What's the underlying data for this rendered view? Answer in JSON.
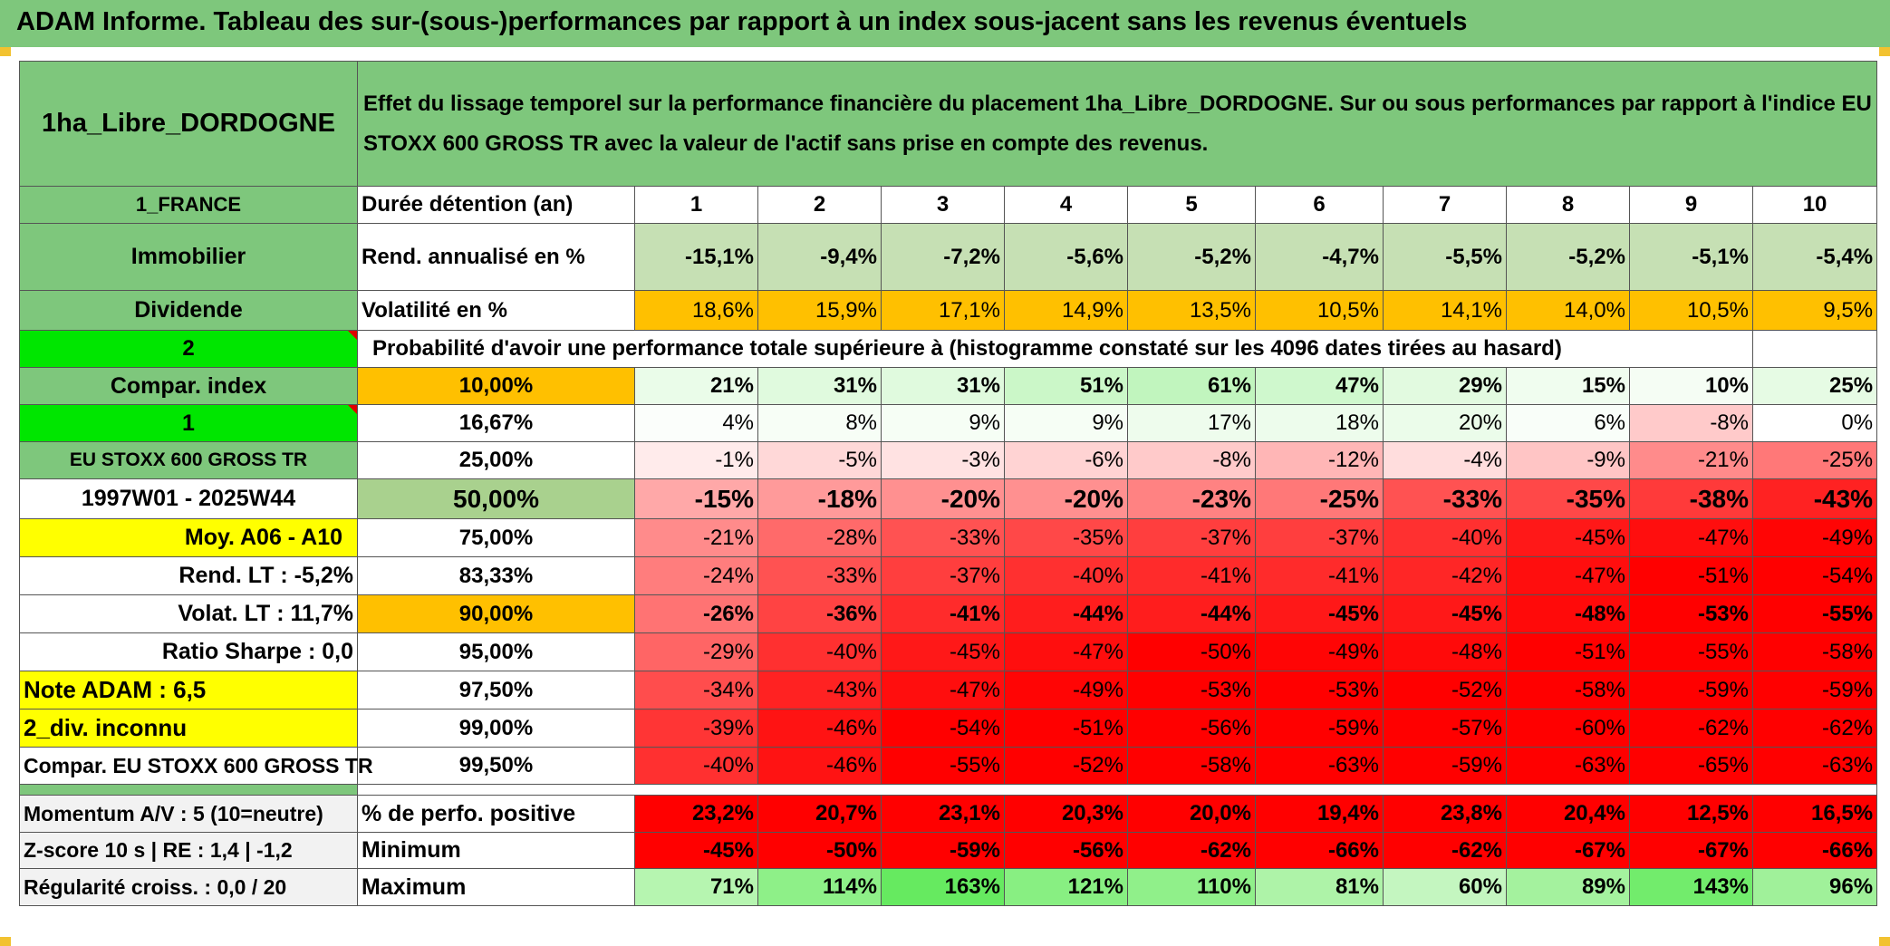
{
  "title": "ADAM Informe. Tableau des sur-(sous-)performances par rapport à un index sous-jacent sans les revenus éventuels",
  "fund_name": "1ha_Libre_DORDOGNE",
  "description": "Effet du lissage temporel sur la performance financière du placement 1ha_Libre_DORDOGNE. Sur ou sous performances par rapport à l'indice EU STOXX 600 GROSS TR avec la valeur de l'actif sans prise en compte des revenus.",
  "left_labels": {
    "country": "1_FRANCE",
    "category": "Immobilier",
    "type": "Dividende",
    "num2": "2",
    "compar_index": "Compar. index",
    "num1": "1",
    "index_name": "EU STOXX 600 GROSS TR",
    "period": "1997W01 - 2025W44",
    "moy": "Moy. A06 - A10",
    "rend_lt": "Rend. LT :    -5,2%",
    "volat_lt": "Volat. LT :   11,7%",
    "sharpe": "Ratio Sharpe :    0,0",
    "note": "Note ADAM : 6,5",
    "div": "2_div. inconnu",
    "compar": "Compar. EU STOXX 600 GROSS TR",
    "momentum": "Momentum A/V : 5 (10=neutre)",
    "zscore": "Z-score 10 s | RE : 1,4 | -1,2",
    "regularite": "Régularité croiss. : 0,0 / 20"
  },
  "row_labels": {
    "duree": "Durée détention (an)",
    "rend": "Rend. annualisé en %",
    "vol": "Volatilité en %",
    "proba": "Probabilité d'avoir une performance totale supérieure à (histogramme constaté sur les 4096 dates tirées au hasard)",
    "pos": "% de perfo. positive",
    "min": "Minimum",
    "max": "Maximum"
  },
  "years": [
    "1",
    "2",
    "3",
    "4",
    "5",
    "6",
    "7",
    "8",
    "9",
    "10"
  ],
  "rend": [
    "-15,1%",
    "-9,4%",
    "-7,2%",
    "-5,6%",
    "-5,2%",
    "-4,7%",
    "-5,5%",
    "-5,2%",
    "-5,1%",
    "-5,4%"
  ],
  "vol": [
    "18,6%",
    "15,9%",
    "17,1%",
    "14,9%",
    "13,5%",
    "10,5%",
    "14,1%",
    "14,0%",
    "10,5%",
    "9,5%"
  ],
  "prob_rows": [
    {
      "p": "10,00%",
      "v": [
        "21%",
        "31%",
        "31%",
        "51%",
        "61%",
        "47%",
        "29%",
        "15%",
        "10%",
        "25%"
      ]
    },
    {
      "p": "16,67%",
      "v": [
        "4%",
        "8%",
        "9%",
        "9%",
        "17%",
        "18%",
        "20%",
        "6%",
        "-8%",
        "0%"
      ]
    },
    {
      "p": "25,00%",
      "v": [
        "-1%",
        "-5%",
        "-3%",
        "-6%",
        "-8%",
        "-12%",
        "-4%",
        "-9%",
        "-21%",
        "-25%"
      ]
    },
    {
      "p": "50,00%",
      "v": [
        "-15%",
        "-18%",
        "-20%",
        "-20%",
        "-23%",
        "-25%",
        "-33%",
        "-35%",
        "-38%",
        "-43%"
      ]
    },
    {
      "p": "75,00%",
      "v": [
        "-21%",
        "-28%",
        "-33%",
        "-35%",
        "-37%",
        "-37%",
        "-40%",
        "-45%",
        "-47%",
        "-49%"
      ]
    },
    {
      "p": "83,33%",
      "v": [
        "-24%",
        "-33%",
        "-37%",
        "-40%",
        "-41%",
        "-41%",
        "-42%",
        "-47%",
        "-51%",
        "-54%"
      ]
    },
    {
      "p": "90,00%",
      "v": [
        "-26%",
        "-36%",
        "-41%",
        "-44%",
        "-44%",
        "-45%",
        "-45%",
        "-48%",
        "-53%",
        "-55%"
      ]
    },
    {
      "p": "95,00%",
      "v": [
        "-29%",
        "-40%",
        "-45%",
        "-47%",
        "-50%",
        "-49%",
        "-48%",
        "-51%",
        "-55%",
        "-58%"
      ]
    },
    {
      "p": "97,50%",
      "v": [
        "-34%",
        "-43%",
        "-47%",
        "-49%",
        "-53%",
        "-53%",
        "-52%",
        "-58%",
        "-59%",
        "-59%"
      ]
    },
    {
      "p": "99,00%",
      "v": [
        "-39%",
        "-46%",
        "-54%",
        "-51%",
        "-56%",
        "-59%",
        "-57%",
        "-60%",
        "-62%",
        "-62%"
      ]
    },
    {
      "p": "99,50%",
      "v": [
        "-40%",
        "-46%",
        "-55%",
        "-52%",
        "-58%",
        "-63%",
        "-59%",
        "-63%",
        "-65%",
        "-63%"
      ]
    }
  ],
  "pos": [
    "23,2%",
    "20,7%",
    "23,1%",
    "20,3%",
    "20,0%",
    "19,4%",
    "23,8%",
    "20,4%",
    "12,5%",
    "16,5%"
  ],
  "min": [
    "-45%",
    "-50%",
    "-59%",
    "-56%",
    "-62%",
    "-66%",
    "-62%",
    "-67%",
    "-67%",
    "-66%"
  ],
  "max": [
    "71%",
    "114%",
    "163%",
    "121%",
    "110%",
    "81%",
    "60%",
    "89%",
    "143%",
    "96%"
  ],
  "colors": {
    "header_green": "#7ec77c",
    "lime": "#00e600",
    "yellow": "#ffff00",
    "orange": "#ffc000",
    "label_red": "#e00000"
  }
}
